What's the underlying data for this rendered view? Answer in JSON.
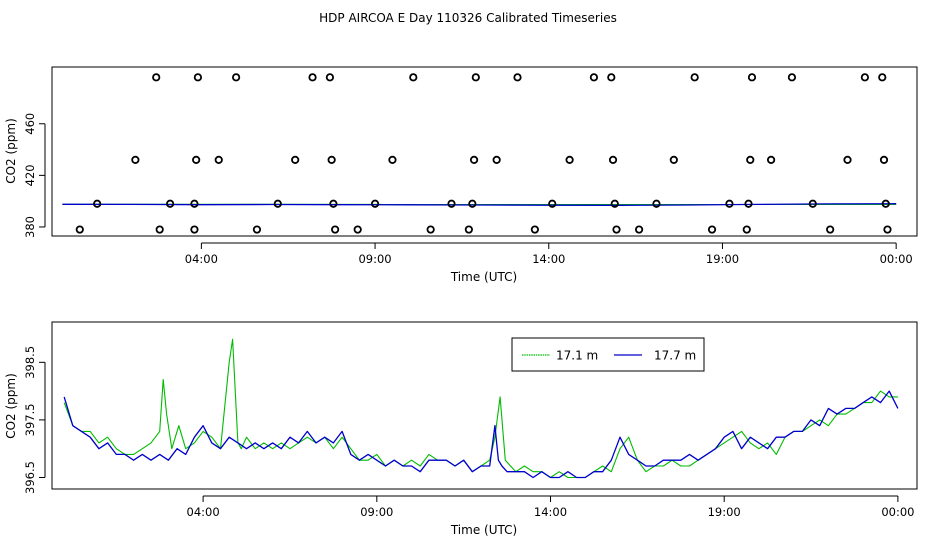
{
  "title": "HDP AIRCOA E  Day 110326  Calibrated Timeseries",
  "colors": {
    "green": "#00bb00",
    "blue": "#0000cc",
    "axis": "#000000"
  },
  "chart_data": [
    {
      "type": "scatter",
      "title": "HDP AIRCOA E  Day 110326  Calibrated Timeseries",
      "xlabel": "Time (UTC)",
      "ylabel": "CO2 (ppm)",
      "x_unit": "hours UTC",
      "x_ticks": [
        {
          "x": 4,
          "label": "04:00"
        },
        {
          "x": 9,
          "label": "09:00"
        },
        {
          "x": 14,
          "label": "14:00"
        },
        {
          "x": 19,
          "label": "19:00"
        },
        {
          "x": 24,
          "label": "00:00"
        }
      ],
      "y_ticks": [
        {
          "y": 380,
          "label": "380"
        },
        {
          "y": 420,
          "label": "420"
        },
        {
          "y": 460,
          "label": "460"
        }
      ],
      "xlim": [
        -0.3,
        24.6
      ],
      "ylim": [
        373,
        504
      ],
      "grid": false,
      "calibration_points": [
        [
          0.5,
          378
        ],
        [
          1.0,
          398
        ],
        [
          2.1,
          432
        ],
        [
          2.7,
          496
        ],
        [
          2.8,
          378
        ],
        [
          3.1,
          398
        ],
        [
          3.8,
          378
        ],
        [
          3.8,
          398
        ],
        [
          3.85,
          432
        ],
        [
          3.9,
          496
        ],
        [
          4.5,
          432
        ],
        [
          5.0,
          496
        ],
        [
          5.6,
          378
        ],
        [
          6.2,
          398
        ],
        [
          6.7,
          432
        ],
        [
          7.2,
          496
        ],
        [
          7.7,
          496
        ],
        [
          7.75,
          432
        ],
        [
          7.8,
          398
        ],
        [
          7.85,
          378
        ],
        [
          8.5,
          378
        ],
        [
          9.0,
          398
        ],
        [
          9.5,
          432
        ],
        [
          10.1,
          496
        ],
        [
          10.6,
          378
        ],
        [
          11.2,
          398
        ],
        [
          11.7,
          378
        ],
        [
          11.8,
          398
        ],
        [
          11.85,
          432
        ],
        [
          11.9,
          496
        ],
        [
          12.5,
          432
        ],
        [
          13.1,
          496
        ],
        [
          13.6,
          378
        ],
        [
          14.1,
          398
        ],
        [
          14.6,
          432
        ],
        [
          15.3,
          496
        ],
        [
          15.8,
          496
        ],
        [
          15.85,
          432
        ],
        [
          15.9,
          398
        ],
        [
          15.95,
          378
        ],
        [
          16.6,
          378
        ],
        [
          17.1,
          398
        ],
        [
          17.6,
          432
        ],
        [
          18.2,
          496
        ],
        [
          18.7,
          378
        ],
        [
          19.2,
          398
        ],
        [
          19.7,
          378
        ],
        [
          19.75,
          398
        ],
        [
          19.8,
          432
        ],
        [
          19.85,
          496
        ],
        [
          20.4,
          432
        ],
        [
          21.0,
          496
        ],
        [
          21.6,
          398
        ],
        [
          22.1,
          378
        ],
        [
          22.6,
          432
        ],
        [
          23.1,
          496
        ],
        [
          23.6,
          496
        ],
        [
          23.65,
          432
        ],
        [
          23.7,
          398
        ],
        [
          23.75,
          378
        ]
      ],
      "series": [
        {
          "name": "17.1 m",
          "color": "#00bb00",
          "x": [
            0,
            24
          ],
          "y": [
            397.6,
            397.4
          ]
        },
        {
          "name": "17.7 m",
          "color": "#0000cc",
          "x": [
            0,
            2,
            4,
            6,
            8,
            10,
            12,
            14,
            16,
            18,
            20,
            22,
            24
          ],
          "y": [
            397.6,
            397.5,
            397.3,
            397.4,
            397.3,
            397.2,
            397.0,
            396.9,
            396.8,
            397.0,
            397.5,
            397.9,
            398.0
          ]
        }
      ]
    },
    {
      "type": "line",
      "title": "",
      "xlabel": "Time (UTC)",
      "ylabel": "CO2 (ppm)",
      "x_unit": "hours UTC",
      "x_ticks": [
        {
          "x": 4,
          "label": "04:00"
        },
        {
          "x": 9,
          "label": "09:00"
        },
        {
          "x": 14,
          "label": "14:00"
        },
        {
          "x": 19,
          "label": "19:00"
        },
        {
          "x": 24,
          "label": "00:00"
        }
      ],
      "y_ticks": [
        {
          "y": 396.5,
          "label": "396.5"
        },
        {
          "y": 397.5,
          "label": "397.5"
        },
        {
          "y": 398.5,
          "label": "398.5"
        }
      ],
      "xlim": [
        -0.35,
        24.55
      ],
      "ylim": [
        396.3,
        399.2
      ],
      "grid": false,
      "legend": {
        "position": "top-right"
      },
      "series": [
        {
          "name": "17.1 m",
          "color": "#00bb00",
          "x": [
            0,
            0.25,
            0.5,
            0.75,
            1.0,
            1.25,
            1.5,
            1.75,
            2.0,
            2.25,
            2.5,
            2.75,
            2.85,
            2.95,
            3.1,
            3.3,
            3.5,
            3.75,
            4.0,
            4.25,
            4.5,
            4.75,
            4.85,
            5.0,
            5.1,
            5.25,
            5.5,
            5.75,
            6.0,
            6.25,
            6.5,
            6.75,
            7.0,
            7.25,
            7.5,
            7.75,
            8.0,
            8.25,
            8.5,
            8.75,
            9.0,
            9.25,
            9.5,
            9.75,
            10.0,
            10.25,
            10.5,
            10.75,
            11.0,
            11.25,
            11.5,
            11.75,
            12.0,
            12.25,
            12.4,
            12.55,
            12.7,
            13.0,
            13.25,
            13.5,
            13.75,
            14.0,
            14.25,
            14.5,
            14.75,
            15.0,
            15.25,
            15.5,
            15.75,
            16.0,
            16.25,
            16.5,
            16.75,
            17.0,
            17.25,
            17.5,
            17.75,
            18.0,
            18.25,
            18.5,
            18.75,
            19.0,
            19.25,
            19.5,
            19.75,
            20.0,
            20.25,
            20.5,
            20.75,
            21.0,
            21.25,
            21.5,
            21.75,
            22.0,
            22.25,
            22.5,
            22.75,
            23.0,
            23.25,
            23.5,
            23.75,
            24.0
          ],
          "y": [
            397.8,
            397.4,
            397.3,
            397.3,
            397.1,
            397.2,
            397.0,
            396.9,
            396.9,
            397.0,
            397.1,
            397.3,
            398.2,
            397.6,
            397.0,
            397.4,
            397.0,
            397.1,
            397.3,
            397.2,
            397.0,
            398.5,
            398.9,
            397.1,
            397.0,
            397.2,
            397.0,
            397.1,
            397.0,
            397.1,
            397.0,
            397.1,
            397.2,
            397.1,
            397.2,
            397.0,
            397.2,
            397.0,
            396.8,
            396.8,
            396.9,
            396.7,
            396.8,
            396.7,
            396.8,
            396.7,
            396.9,
            396.8,
            396.8,
            396.7,
            396.8,
            396.6,
            396.7,
            396.8,
            397.2,
            397.9,
            396.8,
            396.6,
            396.7,
            396.6,
            396.6,
            396.5,
            396.6,
            396.5,
            396.5,
            396.5,
            396.6,
            396.7,
            396.6,
            397.0,
            397.2,
            396.8,
            396.6,
            396.7,
            396.7,
            396.8,
            396.7,
            396.7,
            396.8,
            396.9,
            397.0,
            397.1,
            397.2,
            397.3,
            397.1,
            397.0,
            397.1,
            396.9,
            397.2,
            397.3,
            397.3,
            397.4,
            397.5,
            397.4,
            397.6,
            397.6,
            397.7,
            397.8,
            397.8,
            398.0,
            397.9,
            397.9
          ]
        },
        {
          "name": "17.7 m",
          "color": "#0000cc",
          "x": [
            0,
            0.25,
            0.5,
            0.75,
            1.0,
            1.25,
            1.5,
            1.75,
            2.0,
            2.25,
            2.5,
            2.75,
            3.0,
            3.25,
            3.5,
            3.75,
            4.0,
            4.25,
            4.5,
            4.75,
            5.0,
            5.25,
            5.5,
            5.75,
            6.0,
            6.25,
            6.5,
            6.75,
            7.0,
            7.25,
            7.5,
            7.75,
            8.0,
            8.25,
            8.5,
            8.75,
            9.0,
            9.25,
            9.5,
            9.75,
            10.0,
            10.25,
            10.5,
            10.75,
            11.0,
            11.25,
            11.5,
            11.75,
            12.0,
            12.25,
            12.4,
            12.5,
            12.6,
            12.75,
            13.0,
            13.25,
            13.5,
            13.75,
            14.0,
            14.25,
            14.5,
            14.75,
            15.0,
            15.25,
            15.5,
            15.75,
            16.0,
            16.25,
            16.5,
            16.75,
            17.0,
            17.25,
            17.5,
            17.75,
            18.0,
            18.25,
            18.5,
            18.75,
            19.0,
            19.25,
            19.5,
            19.75,
            20.0,
            20.25,
            20.5,
            20.75,
            21.0,
            21.25,
            21.5,
            21.75,
            22.0,
            22.25,
            22.5,
            22.75,
            23.0,
            23.25,
            23.5,
            23.75,
            24.0
          ],
          "y": [
            397.9,
            397.4,
            397.3,
            397.2,
            397.0,
            397.1,
            396.9,
            396.9,
            396.8,
            396.9,
            396.8,
            396.9,
            396.8,
            397.0,
            396.9,
            397.2,
            397.4,
            397.1,
            397.0,
            397.2,
            397.1,
            397.0,
            397.1,
            397.0,
            397.1,
            397.0,
            397.2,
            397.1,
            397.3,
            397.1,
            397.2,
            397.1,
            397.3,
            396.9,
            396.8,
            396.9,
            396.8,
            396.7,
            396.8,
            396.7,
            396.7,
            396.6,
            396.8,
            396.8,
            396.8,
            396.7,
            396.8,
            396.6,
            396.7,
            396.7,
            397.4,
            396.8,
            396.7,
            396.6,
            396.6,
            396.6,
            396.5,
            396.6,
            396.5,
            396.5,
            396.6,
            396.5,
            396.5,
            396.6,
            396.6,
            396.8,
            397.2,
            396.9,
            396.8,
            396.7,
            396.7,
            396.8,
            396.8,
            396.8,
            396.9,
            396.8,
            396.9,
            397.0,
            397.2,
            397.3,
            397.0,
            397.2,
            397.1,
            397.0,
            397.2,
            397.2,
            397.3,
            397.3,
            397.5,
            397.4,
            397.7,
            397.6,
            397.7,
            397.7,
            397.8,
            397.9,
            397.8,
            398.0,
            397.7
          ]
        }
      ]
    }
  ]
}
